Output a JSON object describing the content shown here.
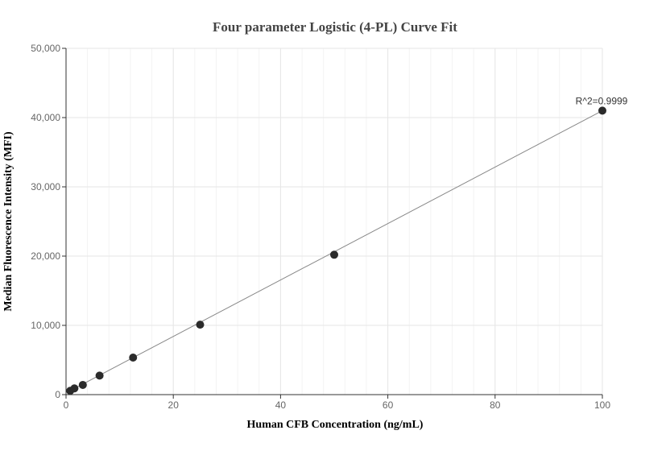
{
  "chart_data": {
    "type": "scatter",
    "title": "Four parameter Logistic (4-PL) Curve Fit",
    "xlabel": "Human CFB Concentration (ng/mL)",
    "ylabel": "Median Fluorescence Intensity (MFI)",
    "xlim": [
      0,
      100
    ],
    "ylim": [
      0,
      50000
    ],
    "x_ticks": [
      "0",
      "20",
      "40",
      "60",
      "80",
      "100"
    ],
    "y_ticks": [
      "0",
      "10,000",
      "20,000",
      "30,000",
      "40,000",
      "50,000"
    ],
    "grid": true,
    "series": [
      {
        "points": [
          {
            "x": 0.78,
            "y": 550
          },
          {
            "x": 1.56,
            "y": 900
          },
          {
            "x": 3.13,
            "y": 1400
          },
          {
            "x": 6.25,
            "y": 2750
          },
          {
            "x": 12.5,
            "y": 5350
          },
          {
            "x": 25,
            "y": 10100
          },
          {
            "x": 50,
            "y": 20200
          },
          {
            "x": 100,
            "y": 41000
          }
        ]
      }
    ],
    "fit_curve": {
      "points": [
        {
          "x": 0,
          "y": 250
        },
        {
          "x": 100,
          "y": 41000
        }
      ]
    },
    "annotation": {
      "text": "R^2=0.9999",
      "x": 100,
      "y": 41000
    },
    "colors": {
      "points": "#2b2b2b",
      "fit_line": "#888888",
      "grid": "#e6e6e6",
      "minor_grid": "#f3f3f3",
      "axis": "#333333"
    }
  }
}
